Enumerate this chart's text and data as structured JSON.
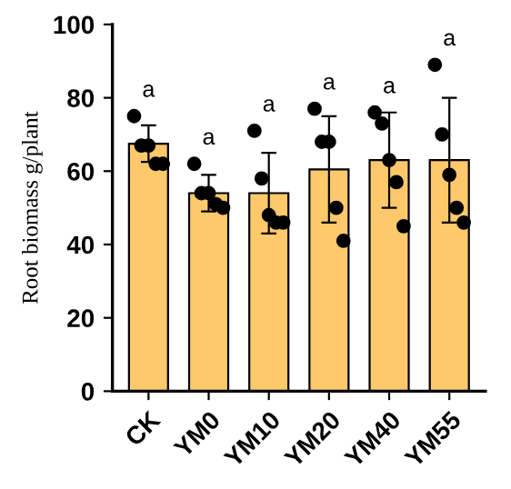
{
  "chart_data": {
    "type": "bar",
    "ylabel": "Root biomass g/plant",
    "categories": [
      "CK",
      "YM0",
      "YM10",
      "YM20",
      "YM40",
      "YM55"
    ],
    "series": [
      {
        "color": "#fdc96b",
        "values": [
          67.5,
          54,
          54,
          60.5,
          63,
          63
        ],
        "errors": [
          5,
          5,
          11,
          14.5,
          13,
          17
        ]
      },
      {
        "type": "scatter",
        "color": "#000000",
        "x": [
          "CK",
          "CK",
          "CK",
          "CK",
          "CK",
          "YM0",
          "YM0",
          "YM0",
          "YM0",
          "YM0",
          "YM10",
          "YM10",
          "YM10",
          "YM10",
          "YM10",
          "YM20",
          "YM20",
          "YM20",
          "YM20",
          "YM20",
          "YM40",
          "YM40",
          "YM40",
          "YM40",
          "YM40",
          "YM55",
          "YM55",
          "YM55",
          "YM55",
          "YM55"
        ],
        "values": [
          75,
          67,
          67,
          62,
          62,
          62,
          54,
          54,
          51,
          50,
          71,
          58,
          48,
          46,
          46,
          77,
          68,
          68,
          50,
          41,
          76,
          73,
          63,
          57,
          45,
          89,
          70,
          59,
          50,
          46
        ]
      }
    ],
    "ylim": [
      0,
      100
    ],
    "yticks": [
      0,
      20,
      40,
      60,
      80,
      100
    ],
    "grid": false,
    "marker": "circle",
    "annotations": [
      "a",
      "a",
      "a",
      "a",
      "a",
      "a"
    ]
  }
}
